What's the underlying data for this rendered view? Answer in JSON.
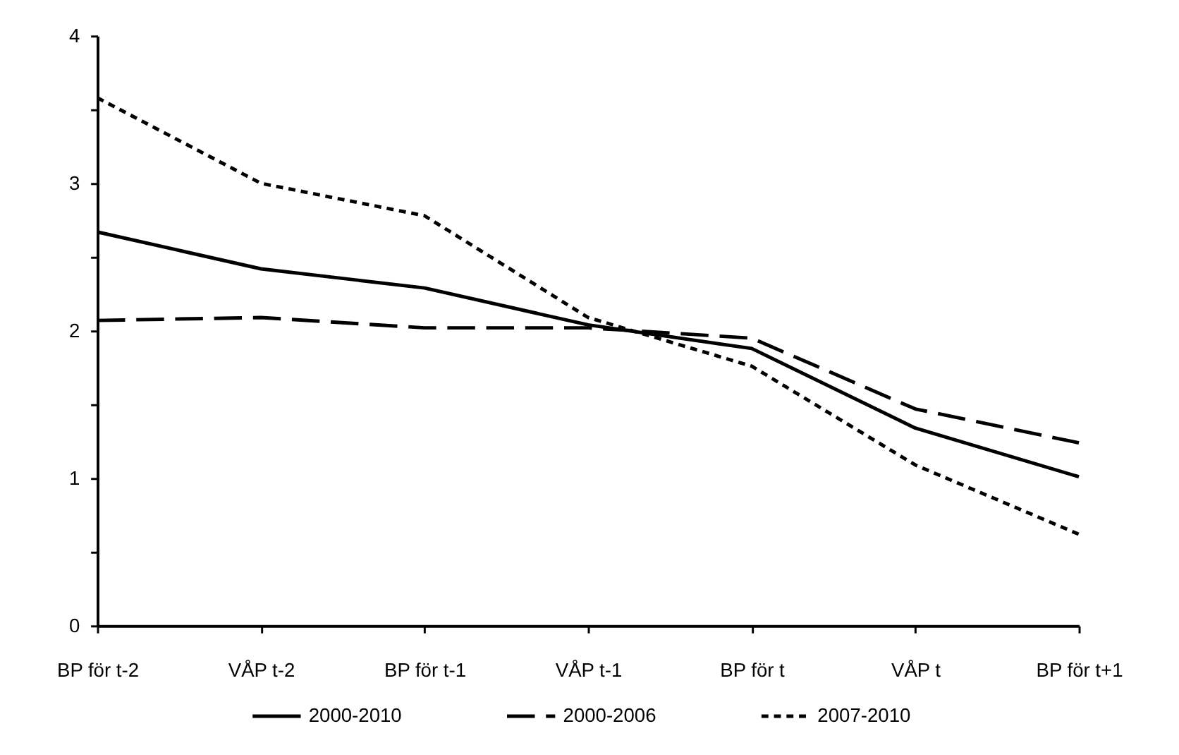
{
  "chart_data": {
    "type": "line",
    "categories": [
      "BP för t-2",
      "VÅP t-2",
      "BP för t-1",
      "VÅP t-1",
      "BP för t",
      "VÅP t",
      "BP för t+1"
    ],
    "series": [
      {
        "name": "2000-2010",
        "color": "#000000",
        "line_style": "solid",
        "values": [
          2.67,
          2.42,
          2.29,
          2.04,
          1.88,
          1.34,
          1.01
        ]
      },
      {
        "name": "2000-2006",
        "color": "#000000",
        "line_style": "dashed",
        "values": [
          2.07,
          2.09,
          2.02,
          2.02,
          1.95,
          1.47,
          1.24
        ]
      },
      {
        "name": "2007-2010",
        "color": "#000000",
        "line_style": "dotted",
        "values": [
          3.58,
          3.0,
          2.78,
          2.09,
          1.76,
          1.09,
          0.62
        ]
      }
    ],
    "ylim": [
      0,
      4
    ],
    "yticks": [
      0,
      {
        "value": 0.5,
        "label": null
      },
      1,
      {
        "value": 1.5,
        "label": null
      },
      2,
      {
        "value": 2.5,
        "label": null
      },
      3,
      {
        "value": 3.5,
        "label": null
      },
      4
    ],
    "grid": false,
    "legend": "bottom",
    "marker": "none"
  }
}
